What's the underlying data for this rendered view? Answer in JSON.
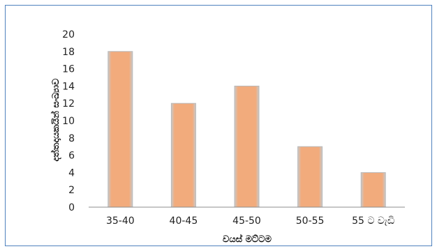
{
  "chart_data": {
    "type": "bar",
    "title": "",
    "xlabel": "වයස් මට්ටම",
    "ylabel": "දත්තදායකයින් සංඛ්‍යාව",
    "categories": [
      "35-40",
      "40-45",
      "45-50",
      "50-55",
      "55 ට වැඩි"
    ],
    "values": [
      18,
      12,
      14,
      7,
      4
    ],
    "ylim": [
      0,
      20
    ],
    "yticks": [
      "0",
      "2",
      "4",
      "6",
      "8",
      "10",
      "12",
      "14",
      "16",
      "18",
      "20"
    ],
    "grid": false,
    "legend": "none",
    "bar_color": "#f2ab7c",
    "bar_edge_color": "#b8b8b8",
    "border_color": "#4f81bd"
  }
}
